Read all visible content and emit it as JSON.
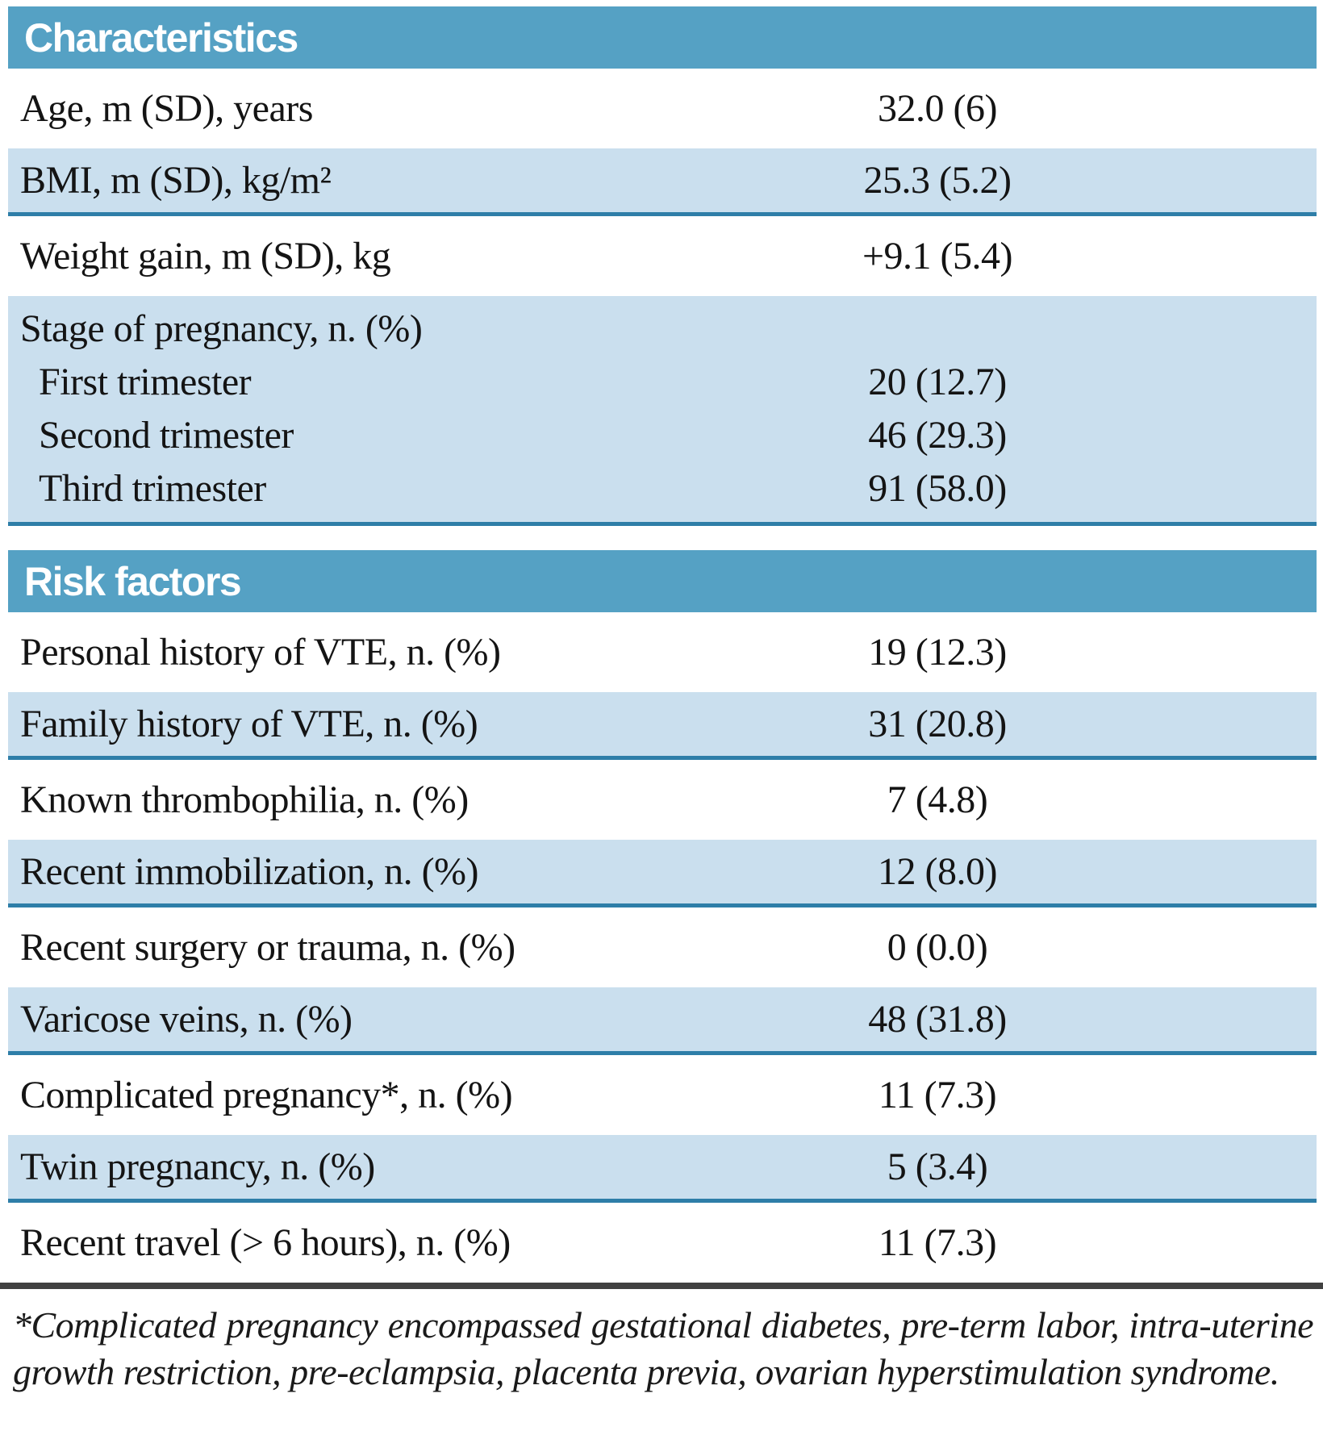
{
  "colors": {
    "header_band": "#55a1c4",
    "shaded_row": "#cadfee",
    "row_separator": "#2e7ea8",
    "footnote_rule": "#414141",
    "header_text": "#ffffff",
    "body_text": "#141414"
  },
  "sections": [
    {
      "header": "Characteristics",
      "rows": [
        {
          "label": "Age, m (SD), years",
          "value": "32.0 (6)",
          "shaded": false
        },
        {
          "label": "BMI, m (SD), kg/m²",
          "value": "25.3 (5.2)",
          "shaded": true
        },
        {
          "label": "Weight gain, m (SD), kg",
          "value": "+9.1 (5.4)",
          "shaded": false
        },
        {
          "label": "Stage of pregnancy, n. (%)",
          "value": "",
          "shaded": true,
          "subrows": [
            {
              "label": "First trimester",
              "value": "20 (12.7)"
            },
            {
              "label": "Second trimester",
              "value": "46 (29.3)"
            },
            {
              "label": "Third trimester",
              "value": "91 (58.0)"
            }
          ]
        }
      ]
    },
    {
      "header": "Risk factors",
      "rows": [
        {
          "label": "Personal history of VTE, n. (%)",
          "value": "19 (12.3)",
          "shaded": false
        },
        {
          "label": "Family history of VTE, n. (%)",
          "value": "31 (20.8)",
          "shaded": true
        },
        {
          "label": "Known thrombophilia, n. (%)",
          "value": "7 (4.8)",
          "shaded": false
        },
        {
          "label": "Recent immobilization, n. (%)",
          "value": "12 (8.0)",
          "shaded": true
        },
        {
          "label": "Recent surgery or trauma, n. (%)",
          "value": "0 (0.0)",
          "shaded": false
        },
        {
          "label": "Varicose veins, n. (%)",
          "value": "48 (31.8)",
          "shaded": true
        },
        {
          "label": "Complicated pregnancy*, n. (%)",
          "value": "11 (7.3)",
          "shaded": false
        },
        {
          "label": "Twin pregnancy, n. (%)",
          "value": "5 (3.4)",
          "shaded": true
        },
        {
          "label": "Recent travel (> 6 hours), n. (%)",
          "value": "11 (7.3)",
          "shaded": false
        }
      ]
    }
  ],
  "footnote": "*Complicated pregnancy encompassed gestational diabetes, pre-term labor, intra-uterine growth restriction, pre-eclampsia, placenta previa, ovarian hyperstimulation syndrome."
}
